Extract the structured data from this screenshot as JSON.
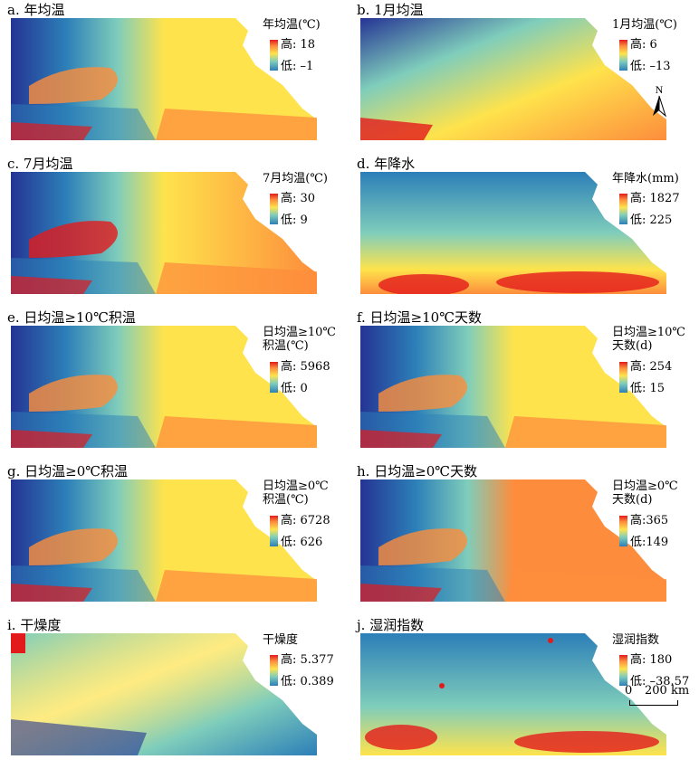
{
  "panels": [
    {
      "title": "a. 年均温",
      "legend_title": "年均温(℃)",
      "hi": "高: 18",
      "lo": "低: –1",
      "style": "temp"
    },
    {
      "title": "b. 1月均温",
      "legend_title": "1月均温(℃)",
      "hi": "高: 6",
      "lo": "低: –13",
      "style": "jan"
    },
    {
      "title": "c. 7月均温",
      "legend_title": "7月均温(℃)",
      "hi": "高: 30",
      "lo": "低: 9",
      "style": "jul"
    },
    {
      "title": "d. 年降水",
      "legend_title": "年降水(mm)",
      "hi": "高: 1827",
      "lo": "低: 225",
      "style": "precip"
    },
    {
      "title": "e. 日均温≥10℃积温",
      "legend_title": "日均温≥10℃\n积温(℃)",
      "hi": "高: 5968",
      "lo": "低: 0",
      "style": "temp"
    },
    {
      "title": "f. 日均温≥10℃天数",
      "legend_title": "日均温≥10℃\n天数(d)",
      "hi": "高: 254",
      "lo": "低: 15",
      "style": "temp"
    },
    {
      "title": "g. 日均温≥0℃积温",
      "legend_title": "日均温≥0℃\n积温(℃)",
      "hi": "高: 6728",
      "lo": "低: 626",
      "style": "temp"
    },
    {
      "title": "h. 日均温≥0℃天数",
      "legend_title": "日均温≥0℃\n天数(d)",
      "hi": "高:365",
      "lo": "低:149",
      "style": "hot"
    },
    {
      "title": "i. 干燥度",
      "legend_title": "干燥度",
      "hi": "高: 5.377",
      "lo": "低: 0.389",
      "style": "dry"
    },
    {
      "title": "j. 湿润指数",
      "legend_title": "湿润指数",
      "hi": "高: 180",
      "lo": "低: –38.57",
      "style": "wet"
    }
  ],
  "north_label": "N",
  "scale": {
    "zero": "0",
    "distance": "200 km"
  },
  "colors": {
    "red": "#e31a1c",
    "orange": "#fd8d3c",
    "yellow": "#fee34c",
    "teal": "#7fcdbb",
    "blue": "#2c7fb8",
    "navy": "#253494"
  }
}
